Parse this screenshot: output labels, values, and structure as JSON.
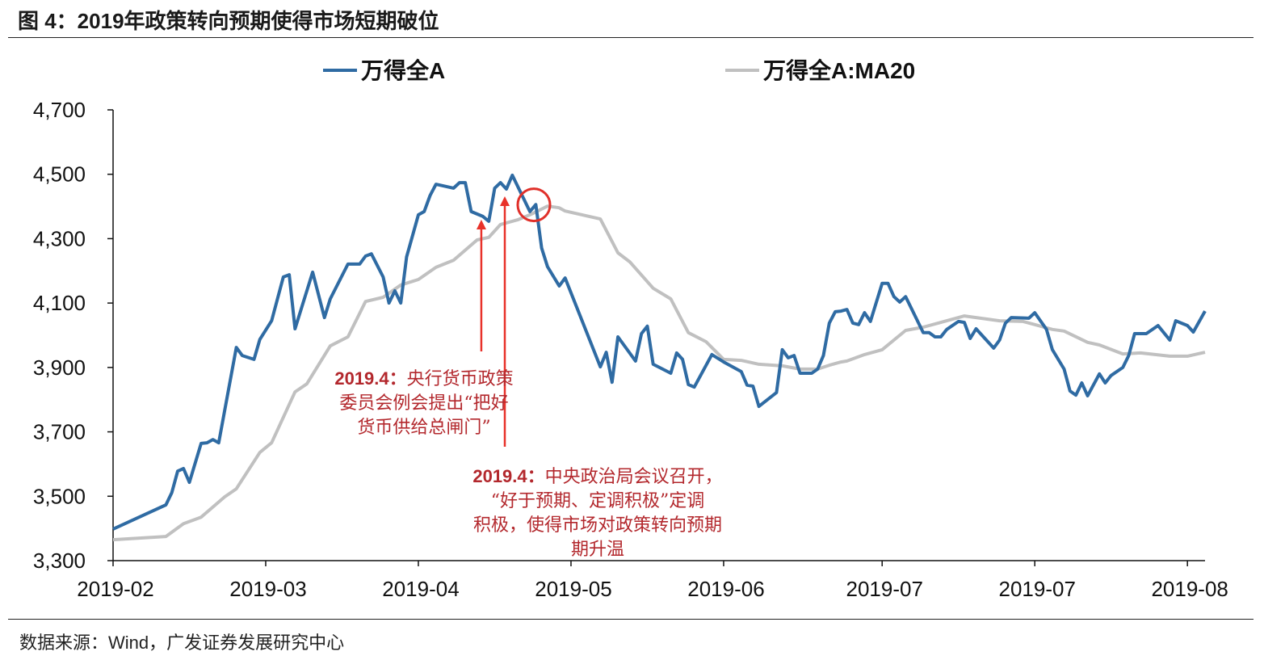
{
  "title": "图 4：2019年政策转向预期使得市场短期破位",
  "source": "数据来源：Wind，广发证券发展研究中心",
  "chart_data": {
    "type": "line",
    "title": "图 4：2019年政策转向预期使得市场短期破位",
    "xlabel": "",
    "ylabel": "",
    "ylim": [
      3300,
      4700
    ],
    "xlim": [
      "2019-02-01",
      "2019-08-06"
    ],
    "y_ticks": [
      {
        "value": 4700,
        "label": "4,700"
      },
      {
        "value": 4500,
        "label": "4,500"
      },
      {
        "value": 4300,
        "label": "4,300"
      },
      {
        "value": 4100,
        "label": "4,100"
      },
      {
        "value": 3900,
        "label": "3,900"
      },
      {
        "value": 3700,
        "label": "3,700"
      },
      {
        "value": 3500,
        "label": "3,500"
      },
      {
        "value": 3300,
        "label": "3,300"
      }
    ],
    "x_ticks": [
      {
        "date": "2019-02-01",
        "label": "2019-02"
      },
      {
        "date": "2019-02-27",
        "label": "2019-03"
      },
      {
        "date": "2019-03-25",
        "label": "2019-04"
      },
      {
        "date": "2019-04-20",
        "label": "2019-05"
      },
      {
        "date": "2019-05-16",
        "label": "2019-06"
      },
      {
        "date": "2019-06-12",
        "label": "2019-07"
      },
      {
        "date": "2019-07-08",
        "label": "2019-07"
      },
      {
        "date": "2019-08-03",
        "label": "2019-08"
      }
    ],
    "grid": false,
    "legend_position": "top",
    "series": [
      {
        "name": "万得全A",
        "color": "#2f6ba3",
        "points": [
          [
            "2019-02-01",
            3398
          ],
          [
            "2019-02-10",
            3473
          ],
          [
            "2019-02-11",
            3511
          ],
          [
            "2019-02-12",
            3578
          ],
          [
            "2019-02-13",
            3586
          ],
          [
            "2019-02-14",
            3543
          ],
          [
            "2019-02-16",
            3664
          ],
          [
            "2019-02-17",
            3666
          ],
          [
            "2019-02-18",
            3676
          ],
          [
            "2019-02-19",
            3666
          ],
          [
            "2019-02-22",
            3962
          ],
          [
            "2019-02-23",
            3937
          ],
          [
            "2019-02-25",
            3925
          ],
          [
            "2019-02-26",
            3987
          ],
          [
            "2019-02-28",
            4045
          ],
          [
            "2019-03-02",
            4181
          ],
          [
            "2019-03-03",
            4188
          ],
          [
            "2019-03-04",
            4020
          ],
          [
            "2019-03-07",
            4196
          ],
          [
            "2019-03-09",
            4055
          ],
          [
            "2019-03-10",
            4113
          ],
          [
            "2019-03-13",
            4221
          ],
          [
            "2019-03-15",
            4221
          ],
          [
            "2019-03-16",
            4246
          ],
          [
            "2019-03-17",
            4253
          ],
          [
            "2019-03-19",
            4181
          ],
          [
            "2019-03-20",
            4100
          ],
          [
            "2019-03-21",
            4138
          ],
          [
            "2019-03-22",
            4100
          ],
          [
            "2019-03-23",
            4243
          ],
          [
            "2019-03-25",
            4374
          ],
          [
            "2019-03-26",
            4384
          ],
          [
            "2019-03-27",
            4434
          ],
          [
            "2019-03-28",
            4469
          ],
          [
            "2019-03-31",
            4457
          ],
          [
            "2019-04-01",
            4474
          ],
          [
            "2019-04-02",
            4474
          ],
          [
            "2019-04-03",
            4384
          ],
          [
            "2019-04-05",
            4369
          ],
          [
            "2019-04-06",
            4354
          ],
          [
            "2019-04-07",
            4457
          ],
          [
            "2019-04-08",
            4474
          ],
          [
            "2019-04-09",
            4454
          ],
          [
            "2019-04-10",
            4497
          ],
          [
            "2019-04-13",
            4384
          ],
          [
            "2019-04-14",
            4406
          ],
          [
            "2019-04-15",
            4271
          ],
          [
            "2019-04-16",
            4213
          ],
          [
            "2019-04-18",
            4153
          ],
          [
            "2019-04-19",
            4178
          ],
          [
            "2019-04-25",
            3902
          ],
          [
            "2019-04-26",
            3947
          ],
          [
            "2019-04-27",
            3854
          ],
          [
            "2019-04-28",
            3995
          ],
          [
            "2019-05-01",
            3920
          ],
          [
            "2019-05-02",
            4005
          ],
          [
            "2019-05-03",
            4028
          ],
          [
            "2019-05-04",
            3910
          ],
          [
            "2019-05-07",
            3882
          ],
          [
            "2019-05-08",
            3945
          ],
          [
            "2019-05-09",
            3925
          ],
          [
            "2019-05-10",
            3847
          ],
          [
            "2019-05-11",
            3839
          ],
          [
            "2019-05-14",
            3940
          ],
          [
            "2019-05-16",
            3917
          ],
          [
            "2019-05-19",
            3887
          ],
          [
            "2019-05-20",
            3845
          ],
          [
            "2019-05-21",
            3842
          ],
          [
            "2019-05-22",
            3779
          ],
          [
            "2019-05-25",
            3822
          ],
          [
            "2019-05-26",
            3955
          ],
          [
            "2019-05-27",
            3930
          ],
          [
            "2019-05-28",
            3937
          ],
          [
            "2019-05-29",
            3882
          ],
          [
            "2019-05-31",
            3882
          ],
          [
            "2019-06-01",
            3895
          ],
          [
            "2019-06-02",
            3937
          ],
          [
            "2019-06-03",
            4038
          ],
          [
            "2019-06-04",
            4073
          ],
          [
            "2019-06-05",
            4075
          ],
          [
            "2019-06-06",
            4080
          ],
          [
            "2019-06-07",
            4038
          ],
          [
            "2019-06-08",
            4033
          ],
          [
            "2019-06-09",
            4070
          ],
          [
            "2019-06-10",
            4043
          ],
          [
            "2019-06-12",
            4161
          ],
          [
            "2019-06-13",
            4161
          ],
          [
            "2019-06-14",
            4120
          ],
          [
            "2019-06-15",
            4103
          ],
          [
            "2019-06-16",
            4120
          ],
          [
            "2019-06-19",
            4008
          ],
          [
            "2019-06-20",
            4008
          ],
          [
            "2019-06-21",
            3995
          ],
          [
            "2019-06-22",
            3995
          ],
          [
            "2019-06-23",
            4018
          ],
          [
            "2019-06-25",
            4043
          ],
          [
            "2019-06-26",
            4040
          ],
          [
            "2019-06-27",
            3990
          ],
          [
            "2019-06-28",
            4020
          ],
          [
            "2019-07-01",
            3960
          ],
          [
            "2019-07-02",
            3985
          ],
          [
            "2019-07-03",
            4038
          ],
          [
            "2019-07-04",
            4055
          ],
          [
            "2019-07-07",
            4053
          ],
          [
            "2019-07-08",
            4070
          ],
          [
            "2019-07-10",
            4018
          ],
          [
            "2019-07-11",
            3955
          ],
          [
            "2019-07-13",
            3895
          ],
          [
            "2019-07-14",
            3827
          ],
          [
            "2019-07-15",
            3814
          ],
          [
            "2019-07-16",
            3852
          ],
          [
            "2019-07-17",
            3812
          ],
          [
            "2019-07-19",
            3880
          ],
          [
            "2019-07-20",
            3852
          ],
          [
            "2019-07-21",
            3875
          ],
          [
            "2019-07-23",
            3900
          ],
          [
            "2019-07-24",
            3937
          ],
          [
            "2019-07-25",
            4005
          ],
          [
            "2019-07-27",
            4005
          ],
          [
            "2019-07-29",
            4030
          ],
          [
            "2019-07-31",
            3985
          ],
          [
            "2019-08-01",
            4045
          ],
          [
            "2019-08-03",
            4030
          ],
          [
            "2019-08-04",
            4010
          ],
          [
            "2019-08-06",
            4075
          ]
        ]
      },
      {
        "name": "万得全A:MA20",
        "color": "#c0c0c0",
        "points": [
          [
            "2019-02-01",
            3365
          ],
          [
            "2019-02-10",
            3375
          ],
          [
            "2019-02-13",
            3415
          ],
          [
            "2019-02-16",
            3435
          ],
          [
            "2019-02-20",
            3498
          ],
          [
            "2019-02-22",
            3523
          ],
          [
            "2019-02-26",
            3636
          ],
          [
            "2019-02-28",
            3666
          ],
          [
            "2019-03-04",
            3824
          ],
          [
            "2019-03-06",
            3849
          ],
          [
            "2019-03-10",
            3967
          ],
          [
            "2019-03-13",
            3995
          ],
          [
            "2019-03-16",
            4105
          ],
          [
            "2019-03-19",
            4118
          ],
          [
            "2019-03-22",
            4156
          ],
          [
            "2019-03-25",
            4173
          ],
          [
            "2019-03-28",
            4211
          ],
          [
            "2019-03-31",
            4233
          ],
          [
            "2019-04-04",
            4296
          ],
          [
            "2019-04-06",
            4304
          ],
          [
            "2019-04-08",
            4344
          ],
          [
            "2019-04-11",
            4359
          ],
          [
            "2019-04-13",
            4374
          ],
          [
            "2019-04-16",
            4401
          ],
          [
            "2019-04-18",
            4396
          ],
          [
            "2019-04-19",
            4386
          ],
          [
            "2019-04-25",
            4361
          ],
          [
            "2019-04-28",
            4256
          ],
          [
            "2019-04-30",
            4228
          ],
          [
            "2019-05-04",
            4146
          ],
          [
            "2019-05-07",
            4113
          ],
          [
            "2019-05-10",
            4008
          ],
          [
            "2019-05-13",
            3980
          ],
          [
            "2019-05-16",
            3925
          ],
          [
            "2019-05-19",
            3922
          ],
          [
            "2019-05-22",
            3910
          ],
          [
            "2019-05-26",
            3905
          ],
          [
            "2019-05-29",
            3895
          ],
          [
            "2019-06-01",
            3895
          ],
          [
            "2019-06-03",
            3907
          ],
          [
            "2019-06-05",
            3917
          ],
          [
            "2019-06-06",
            3920
          ],
          [
            "2019-06-09",
            3940
          ],
          [
            "2019-06-12",
            3955
          ],
          [
            "2019-06-16",
            4015
          ],
          [
            "2019-06-19",
            4025
          ],
          [
            "2019-06-22",
            4040
          ],
          [
            "2019-06-26",
            4060
          ],
          [
            "2019-07-02",
            4045
          ],
          [
            "2019-07-06",
            4043
          ],
          [
            "2019-07-08",
            4033
          ],
          [
            "2019-07-11",
            4018
          ],
          [
            "2019-07-13",
            4013
          ],
          [
            "2019-07-17",
            3978
          ],
          [
            "2019-07-19",
            3970
          ],
          [
            "2019-07-23",
            3942
          ],
          [
            "2019-07-26",
            3945
          ],
          [
            "2019-07-31",
            3935
          ],
          [
            "2019-08-03",
            3935
          ],
          [
            "2019-08-06",
            3947
          ]
        ]
      }
    ],
    "annotations": [
      {
        "lines": [
          {
            "bold": "2019.4：",
            "text": "央行货币政策"
          },
          {
            "bold": "",
            "text": "委员会例会提出“把好"
          },
          {
            "bold": "",
            "text": "货币供给总闸门”"
          }
        ],
        "arrow_date": "2019-04-05",
        "color": "#b3282d"
      },
      {
        "lines": [
          {
            "bold": "2019.4：",
            "text": "中央政治局会议召开，"
          },
          {
            "bold": "",
            "text": "“好于预期、定调积极”定调"
          },
          {
            "bold": "",
            "text": "积极，使得市场对政策转向预期"
          },
          {
            "bold": "",
            "text": "期升温"
          }
        ],
        "arrow_date": "2019-04-09",
        "color": "#b3282d"
      }
    ],
    "highlight_circle": {
      "date": "2019-04-14",
      "value": 4395,
      "color": "#e0302a"
    },
    "arrow_color": "#e8322a"
  }
}
